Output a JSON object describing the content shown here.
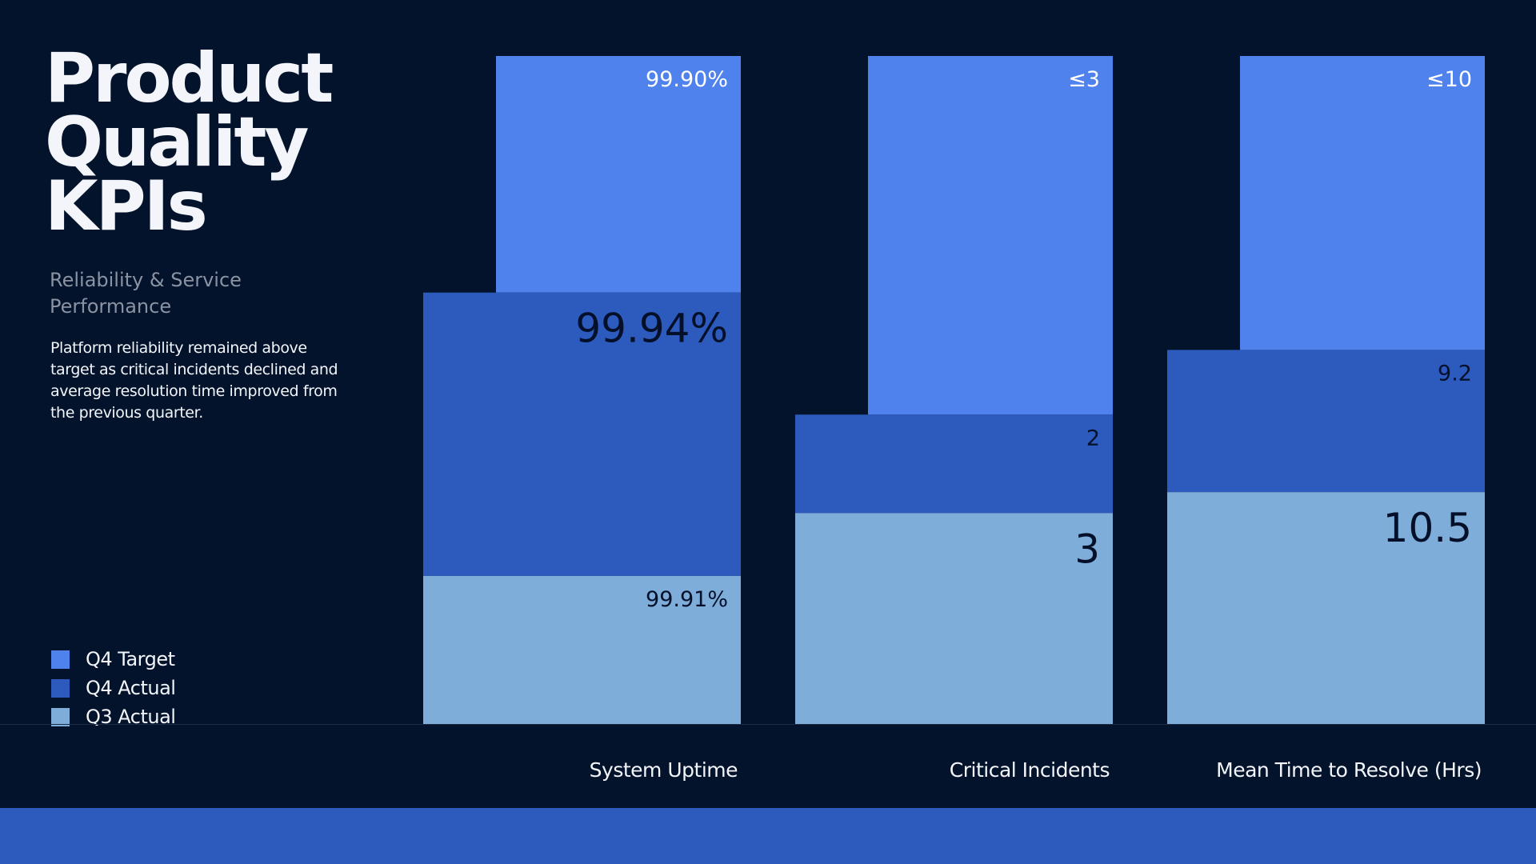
{
  "title_lines": [
    "Product",
    "Quality",
    "KPIs"
  ],
  "subtitle": "Reliability & Service Performance",
  "description": "Platform reliability remained above target as critical incidents declined and average resolution time improved from the previous quarter.",
  "legend": [
    {
      "name": "Q4 Target",
      "color": "#4f82ec"
    },
    {
      "name": "Q4 Actual",
      "color": "#2c5bbd"
    },
    {
      "name": "Q3 Actual",
      "color": "#7dadd8"
    }
  ],
  "chart_data": {
    "type": "bar",
    "categories": [
      "System Uptime",
      "Critical Incidents",
      "Mean Time to Resolve (Hrs)"
    ],
    "series": [
      {
        "name": "Q4 Target",
        "values": [
          99.9,
          3,
          10
        ],
        "labels": [
          "99.90%",
          "≤3",
          "≤10"
        ],
        "color": "#4f82ec"
      },
      {
        "name": "Q4 Actual",
        "values": [
          99.94,
          2,
          9.2
        ],
        "labels": [
          "99.94%",
          "2",
          "9.2"
        ],
        "color": "#2c5bbd"
      },
      {
        "name": "Q3 Actual",
        "values": [
          99.91,
          3,
          10.5
        ],
        "labels": [
          "99.91%",
          "3",
          "10.5"
        ],
        "color": "#7dadd8"
      }
    ],
    "grid": false,
    "legend_position": "bottom-left"
  }
}
